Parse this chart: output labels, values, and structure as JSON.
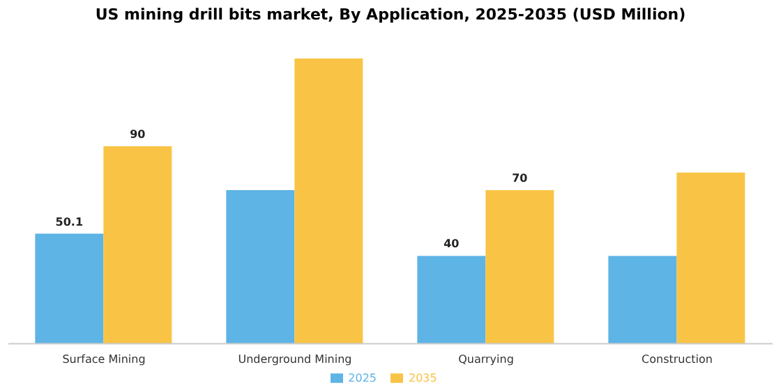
{
  "chart_data": {
    "type": "bar",
    "title": "US mining drill bits market, By Application, 2025-2035 (USD Million)",
    "categories": [
      "Surface Mining",
      "Underground Mining",
      "Quarrying",
      "Construction"
    ],
    "series": [
      {
        "name": "2025",
        "color": "#5db4e5",
        "values": [
          50.1,
          70,
          40,
          40
        ],
        "value_labels": [
          "50.1",
          null,
          "40",
          null
        ]
      },
      {
        "name": "2035",
        "color": "#f9c445",
        "values": [
          90,
          130,
          70,
          78
        ],
        "value_labels": [
          "90",
          null,
          "70",
          null
        ]
      }
    ],
    "legend": "bottom",
    "grid": false
  }
}
